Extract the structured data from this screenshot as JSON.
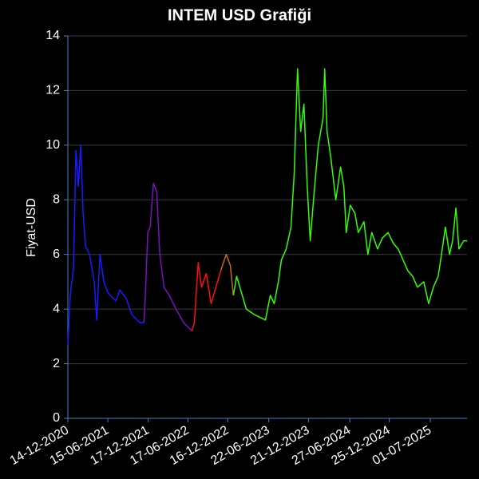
{
  "chart_data": {
    "type": "line",
    "title": "INTEM USD Grafiği",
    "y_label": "Fiyat-USD",
    "x": [
      "2020-12-14",
      "2020-12-25",
      "2021-01-09",
      "2021-01-20",
      "2021-01-31",
      "2021-02-11",
      "2021-02-22",
      "2021-03-05",
      "2021-03-23",
      "2021-04-14",
      "2021-04-25",
      "2021-05-10",
      "2021-05-28",
      "2021-06-15",
      "2021-07-22",
      "2021-08-09",
      "2021-09-07",
      "2021-10-03",
      "2021-11-09",
      "2021-11-27",
      "2021-12-04",
      "2021-12-15",
      "2021-12-26",
      "2022-01-10",
      "2022-01-25",
      "2022-02-08",
      "2022-02-27",
      "2022-03-24",
      "2022-04-23",
      "2022-05-29",
      "2022-07-05",
      "2022-07-16",
      "2022-08-03",
      "2022-08-18",
      "2022-09-09",
      "2022-10-01",
      "2022-10-23",
      "2022-11-14",
      "2022-12-09",
      "2022-12-28",
      "2023-01-11",
      "2023-01-26",
      "2023-02-10",
      "2023-03-11",
      "2023-04-17",
      "2023-05-12",
      "2023-06-07",
      "2023-06-29",
      "2023-07-17",
      "2023-08-05",
      "2023-08-19",
      "2023-09-10",
      "2023-10-02",
      "2023-10-17",
      "2023-11-01",
      "2023-11-15",
      "2023-11-30",
      "2023-12-15",
      "2023-12-29",
      "2024-01-13",
      "2024-02-04",
      "2024-02-26",
      "2024-03-04",
      "2024-03-15",
      "2024-04-02",
      "2024-04-24",
      "2024-05-16",
      "2024-05-31",
      "2024-06-11",
      "2024-06-29",
      "2024-07-21",
      "2024-08-05",
      "2024-08-31",
      "2024-09-18",
      "2024-10-06",
      "2024-11-01",
      "2024-11-23",
      "2024-12-19",
      "2025-01-13",
      "2025-02-04",
      "2025-02-26",
      "2025-03-20",
      "2025-04-11",
      "2025-05-03",
      "2025-06-01",
      "2025-06-23",
      "2025-07-15",
      "2025-08-06",
      "2025-08-21",
      "2025-09-08",
      "2025-09-27",
      "2025-10-11",
      "2025-10-26",
      "2025-11-09",
      "2025-12-01",
      "2025-12-16"
    ],
    "series": [
      {
        "color": "#1a1aff",
        "values": [
          2.7,
          4.5,
          5.5,
          9.8,
          8.5,
          10.0,
          7.5,
          6.3,
          6.0,
          5.0,
          3.6,
          6.0,
          5.0,
          4.6,
          4.3,
          4.7,
          4.4,
          3.8,
          3.5,
          3.5,
          null,
          null,
          null,
          null,
          null,
          null,
          null,
          null,
          null,
          null,
          null,
          null,
          null,
          null,
          null,
          null,
          null,
          null,
          null,
          null,
          null,
          null,
          null,
          null,
          null,
          null,
          null,
          null,
          null,
          null,
          null,
          null,
          null,
          null,
          null,
          null,
          null,
          null,
          null,
          null,
          null,
          null,
          null,
          null,
          null,
          null,
          null,
          null,
          null,
          null,
          null,
          null,
          null,
          null,
          null,
          null,
          null,
          null,
          null,
          null,
          null,
          null,
          null,
          null,
          null,
          null,
          null,
          null,
          null,
          null,
          null,
          null,
          null,
          null,
          null,
          null
        ]
      },
      {
        "color": "#7a10c0",
        "values": [
          null,
          null,
          null,
          null,
          null,
          null,
          null,
          null,
          null,
          null,
          null,
          null,
          null,
          null,
          null,
          null,
          null,
          null,
          null,
          3.5,
          4.5,
          6.8,
          7.0,
          8.6,
          8.3,
          6.0,
          4.8,
          4.5,
          4.0,
          3.5,
          3.2,
          null,
          null,
          null,
          null,
          null,
          null,
          null,
          null,
          null,
          null,
          null,
          null,
          null,
          null,
          null,
          null,
          null,
          null,
          null,
          null,
          null,
          null,
          null,
          null,
          null,
          null,
          null,
          null,
          null,
          null,
          null,
          null,
          null,
          null,
          null,
          null,
          null,
          null,
          null,
          null,
          null,
          null,
          null,
          null,
          null,
          null,
          null,
          null,
          null,
          null,
          null,
          null,
          null,
          null,
          null,
          null,
          null,
          null,
          null,
          null,
          null,
          null,
          null,
          null,
          null
        ]
      },
      {
        "color": "#ff1010",
        "values": [
          null,
          null,
          null,
          null,
          null,
          null,
          null,
          null,
          null,
          null,
          null,
          null,
          null,
          null,
          null,
          null,
          null,
          null,
          null,
          null,
          null,
          null,
          null,
          null,
          null,
          null,
          null,
          null,
          null,
          null,
          3.2,
          3.5,
          5.7,
          4.8,
          5.3,
          4.2,
          4.8,
          5.4,
          null,
          null,
          null,
          null,
          null,
          null,
          null,
          null,
          null,
          null,
          null,
          null,
          null,
          null,
          null,
          null,
          null,
          null,
          null,
          null,
          null,
          null,
          null,
          null,
          null,
          null,
          null,
          null,
          null,
          null,
          null,
          null,
          null,
          null,
          null,
          null,
          null,
          null,
          null,
          null,
          null,
          null,
          null,
          null,
          null,
          null,
          null,
          null,
          null,
          null,
          null,
          null,
          null,
          null,
          null,
          null,
          null,
          null
        ]
      },
      {
        "color": "#c06a20",
        "values": [
          null,
          null,
          null,
          null,
          null,
          null,
          null,
          null,
          null,
          null,
          null,
          null,
          null,
          null,
          null,
          null,
          null,
          null,
          null,
          null,
          null,
          null,
          null,
          null,
          null,
          null,
          null,
          null,
          null,
          null,
          null,
          null,
          null,
          null,
          null,
          null,
          null,
          5.4,
          6.0,
          5.6,
          4.5,
          null,
          null,
          null,
          null,
          null,
          null,
          null,
          null,
          null,
          null,
          null,
          null,
          null,
          null,
          null,
          null,
          null,
          null,
          null,
          null,
          null,
          null,
          null,
          null,
          null,
          null,
          null,
          null,
          null,
          null,
          null,
          null,
          null,
          null,
          null,
          null,
          null,
          null,
          null,
          null,
          null,
          null,
          null,
          null,
          null,
          null,
          null,
          null,
          null,
          null,
          null,
          null,
          null,
          null,
          null
        ]
      },
      {
        "color": "#33ff00",
        "values": [
          null,
          null,
          null,
          null,
          null,
          null,
          null,
          null,
          null,
          null,
          null,
          null,
          null,
          null,
          null,
          null,
          null,
          null,
          null,
          null,
          null,
          null,
          null,
          null,
          null,
          null,
          null,
          null,
          null,
          null,
          null,
          null,
          null,
          null,
          null,
          null,
          null,
          null,
          null,
          null,
          4.5,
          5.2,
          4.8,
          4.0,
          3.8,
          3.7,
          3.6,
          4.5,
          4.2,
          5.0,
          5.8,
          6.2,
          7.0,
          9.0,
          12.8,
          10.5,
          11.5,
          8.5,
          6.5,
          8.0,
          10.0,
          11.0,
          12.8,
          10.5,
          9.5,
          8.0,
          9.2,
          8.5,
          6.8,
          7.8,
          7.5,
          6.8,
          7.2,
          6.0,
          6.8,
          6.2,
          6.6,
          6.8,
          6.4,
          6.2,
          5.8,
          5.4,
          5.2,
          4.8,
          5.0,
          4.2,
          4.8,
          5.2,
          6.0,
          7.0,
          6.0,
          6.5,
          7.7,
          6.2,
          6.5,
          6.5
        ]
      }
    ],
    "xlim": [
      "2020-12-14",
      "2025-12-16"
    ],
    "xticks": [
      {
        "value": "2020-12-14",
        "label": "14-12-2020"
      },
      {
        "value": "2021-06-15",
        "label": "15-06-2021"
      },
      {
        "value": "2021-12-17",
        "label": "17-12-2021"
      },
      {
        "value": "2022-06-17",
        "label": "17-06-2022"
      },
      {
        "value": "2022-12-16",
        "label": "16-12-2022"
      },
      {
        "value": "2023-06-22",
        "label": "22-06-2023"
      },
      {
        "value": "2023-12-21",
        "label": "21-12-2023"
      },
      {
        "value": "2024-06-27",
        "label": "27-06-2024"
      },
      {
        "value": "2024-12-25",
        "label": "25-12-2024"
      },
      {
        "value": "2025-07-01",
        "label": "01-07-2025"
      }
    ],
    "ylim": [
      0,
      14
    ],
    "yticks": [
      0,
      2,
      4,
      6,
      8,
      10,
      12,
      14
    ],
    "grid": true
  }
}
